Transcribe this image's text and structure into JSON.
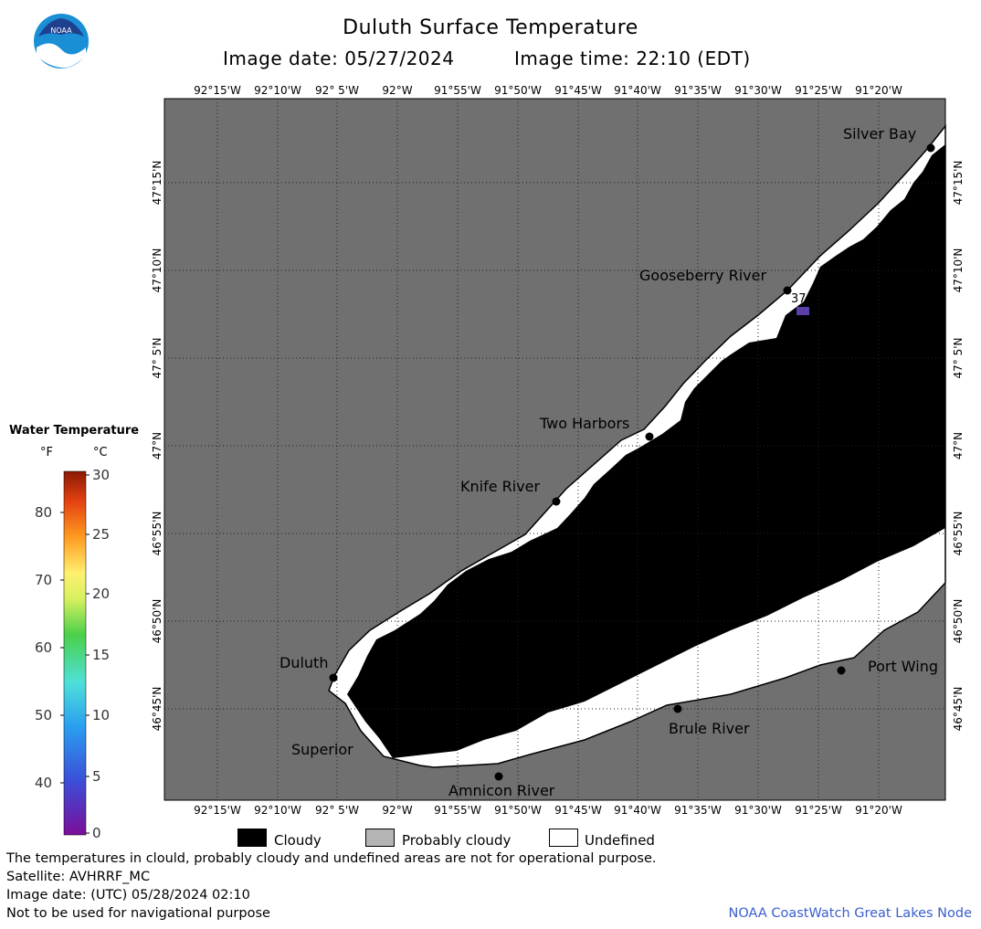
{
  "header": {
    "title": "Duluth Surface Temperature",
    "image_date": "Image date: 05/27/2024",
    "image_time": "Image time: 22:10 (EDT)"
  },
  "logo": {
    "text": "NOAA",
    "icon": "noaa-logo-icon"
  },
  "map": {
    "land_color": "#707070",
    "cloud_color": "#000000",
    "undefined_color": "#ffffff",
    "lon_labels": [
      "92°15'W",
      "92°10'W",
      "92° 5'W",
      "92°W",
      "91°55'W",
      "91°50'W",
      "91°45'W",
      "91°40'W",
      "91°35'W",
      "91°30'W",
      "91°25'W",
      "91°20'W"
    ],
    "lat_labels": [
      "47°15'N",
      "47°10'N",
      "47° 5'N",
      "47°N",
      "46°55'N",
      "46°50'N",
      "46°45'N"
    ],
    "places": [
      {
        "name": "Silver Bay"
      },
      {
        "name": "Gooseberry River"
      },
      {
        "name": "Two Harbors"
      },
      {
        "name": "Knife River"
      },
      {
        "name": "Duluth"
      },
      {
        "name": "Superior"
      },
      {
        "name": "Amnicon River"
      },
      {
        "name": "Brule River"
      },
      {
        "name": "Port Wing"
      }
    ],
    "temperature_reading": {
      "value": "37.0",
      "color": "#5a3fa8"
    }
  },
  "legend": {
    "title": "Water Temperature",
    "unit_f": "°F",
    "unit_c": "°C",
    "fahrenheit_ticks": [
      "80",
      "70",
      "60",
      "50",
      "40"
    ],
    "celsius_ticks": [
      "30",
      "25",
      "20",
      "15",
      "10",
      "5",
      "0"
    ]
  },
  "key": {
    "cloudy": "Cloudy",
    "probably_cloudy": "Probably cloudy",
    "undefined": "Undefined",
    "cloudy_color": "#000000",
    "probably_cloudy_color": "#b4b4b4",
    "undefined_color": "#ffffff"
  },
  "footer": {
    "disclaimer": "The temperatures in clould, probably cloudy and undefined areas are not for operational purpose.",
    "satellite": "Satellite: AVHRRF_MC",
    "utc_date": "Image date: (UTC) 05/28/2024  02:10",
    "nav_warning": "Not to be used for navigational purpose",
    "credit": "NOAA CoastWatch Great Lakes Node"
  }
}
